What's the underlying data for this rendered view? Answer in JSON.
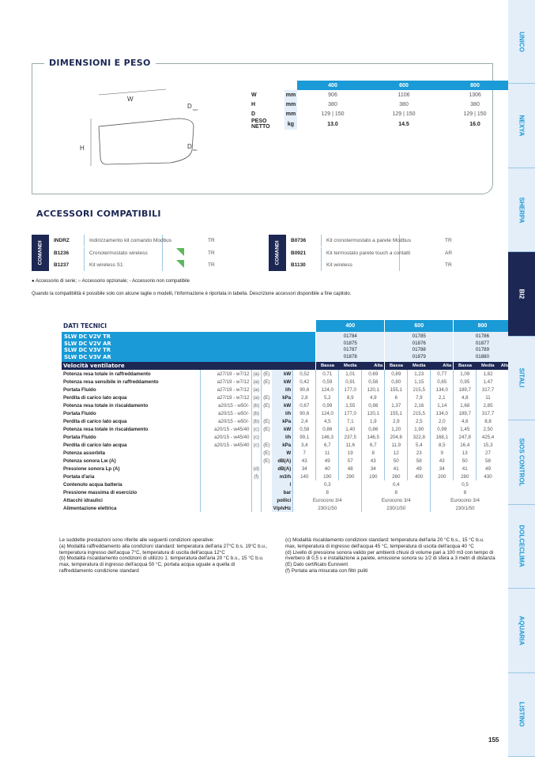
{
  "dimensions": {
    "title": "DIMENSIONI E PESO",
    "drawing_labels": {
      "w": "W",
      "h": "H",
      "dmax": "D",
      "dmax_sub": "MAX",
      "dmin": "D",
      "dmin_sub": "MIN"
    },
    "sizes": [
      "400",
      "600",
      "800"
    ],
    "rows": [
      {
        "label": "W",
        "unit": "mm",
        "values": [
          "906",
          "1106",
          "1306"
        ]
      },
      {
        "label": "H",
        "unit": "mm",
        "values": [
          "380",
          "380",
          "380"
        ]
      },
      {
        "label": "D",
        "unit": "mm",
        "values": [
          "129 | 150",
          "129 | 150",
          "129 | 150"
        ]
      },
      {
        "label": "PESO NETTO",
        "unit": "kg",
        "values": [
          "13.0",
          "14.5",
          "16.0"
        ]
      }
    ]
  },
  "accessories": {
    "title": "ACCESSORI COMPATIBILI",
    "groups": [
      {
        "category": "COMANDI",
        "items": [
          {
            "code": "INDRZ",
            "desc": "Indirizzamento kit comando Modbus",
            "compat": "TR",
            "new": false
          },
          {
            "code": "B1236",
            "desc": "Cronotermostato wireless",
            "compat": "TR",
            "new": true
          },
          {
            "code": "B1237",
            "desc": "Kit wireless S1",
            "compat": "TR",
            "new": true
          }
        ]
      },
      {
        "category": "COMANDI",
        "items": [
          {
            "code": "B0736",
            "desc": "Kit cronotermostato a parete Modbus",
            "compat": "TR",
            "new": false
          },
          {
            "code": "B0921",
            "desc": "Kit termostato parete touch a contatti",
            "compat": "AR",
            "new": false
          },
          {
            "code": "B1130",
            "desc": "Kit wireless",
            "compat": "TR",
            "new": false
          }
        ]
      }
    ],
    "legend": "● Accessorio di serie; ○ Accessorio opzionale; - Accessorio non compatibile",
    "note": "Quando la compatibilità è possibile solo con alcune taglie o modelli, l'informazione è riportata in tabella. Descrizione accessori disponibile a fine capitolo."
  },
  "tech": {
    "title": "DATI TECNICI",
    "sizes": [
      "400",
      "600",
      "800"
    ],
    "models": [
      "SLW DC V2V TR",
      "SLW DC V2V AR",
      "SLW DC V3V TR",
      "SLW DC V3V AR"
    ],
    "codes": [
      [
        "01784",
        "01875",
        "01787",
        "01878"
      ],
      [
        "01785",
        "01876",
        "01788",
        "01879"
      ],
      [
        "01786",
        "01877",
        "01789",
        "01880"
      ]
    ],
    "speed_label": "Velocità ventilatore",
    "speeds": [
      "Bassa",
      "Media",
      "Alta",
      "Bassa",
      "Media",
      "Alta",
      "Bassa",
      "Media",
      "Alta"
    ],
    "rows": [
      {
        "label": "Potenza resa totale in raffreddamento",
        "cond": "a27/19 - w7/12",
        "note": "(a)",
        "e": "(E)",
        "unit": "kW",
        "values": [
          "0,52",
          "0,71",
          "1,01",
          "0,69",
          "0,89",
          "1,23",
          "0,77",
          "1,09",
          "1,82"
        ]
      },
      {
        "label": "Potenza resa sensibile in raffreddamento",
        "cond": "a27/19 - w7/12",
        "note": "(a)",
        "e": "(E)",
        "unit": "kW",
        "values": [
          "0,42",
          "0,59",
          "0,91",
          "0,58",
          "0,80",
          "1,15",
          "0,65",
          "0,95",
          "1,47"
        ]
      },
      {
        "label": "Portata Fluido",
        "cond": "a27/19 - w7/12",
        "note": "(a)",
        "e": "",
        "unit": "l/h",
        "values": [
          "90,6",
          "124,0",
          "177,0",
          "120,1",
          "155,1",
          "215,5",
          "134,0",
          "189,7",
          "317,7"
        ]
      },
      {
        "label": "Perdita di carico lato acqua",
        "cond": "a27/19 - w7/12",
        "note": "(a)",
        "e": "(E)",
        "unit": "kPa",
        "values": [
          "2,8",
          "5,2",
          "8,9",
          "4,9",
          "6",
          "7,9",
          "2,1",
          "4,8",
          "11"
        ]
      },
      {
        "label": "Potenza resa totale in riscaldamento",
        "cond": "a20/15 - w50/-",
        "note": "(b)",
        "e": "(E)",
        "unit": "kW",
        "values": [
          "0,67",
          "0,99",
          "1,55",
          "0,98",
          "1,37",
          "2,16",
          "1,14",
          "1,68",
          "2,85"
        ]
      },
      {
        "label": "Portata Fluido",
        "cond": "a20/15 - w50/-",
        "note": "(b)",
        "e": "",
        "unit": "l/h",
        "values": [
          "90,6",
          "124,0",
          "177,0",
          "120,1",
          "155,1",
          "215,5",
          "134,0",
          "189,7",
          "317,7"
        ]
      },
      {
        "label": "Perdita di carico lato acqua",
        "cond": "a20/15 - w50/-",
        "note": "(b)",
        "e": "(E)",
        "unit": "kPa",
        "values": [
          "2,4",
          "4,5",
          "7,1",
          "1,9",
          "2,9",
          "2,5",
          "2,0",
          "4,6",
          "8,8"
        ]
      },
      {
        "label": "Potenza resa totale in riscaldamento",
        "cond": "a20/15 - w45/40",
        "note": "(c)",
        "e": "(E)",
        "unit": "kW",
        "values": [
          "0,58",
          "0,86",
          "1,40",
          "0,86",
          "1,20",
          "1,90",
          "0,99",
          "1,45",
          "2,50"
        ]
      },
      {
        "label": "Portata Fluido",
        "cond": "a20/15 - w45/40",
        "note": "(c)",
        "e": "",
        "unit": "l/h",
        "values": [
          "99,1",
          "146,3",
          "237,5",
          "146,5",
          "204,6",
          "322,8",
          "168,1",
          "247,8",
          "425,4"
        ]
      },
      {
        "label": "Perdita di carico lato acqua",
        "cond": "a20/15 - w45/40",
        "note": "(c)",
        "e": "(E)",
        "unit": "kPa",
        "values": [
          "3,4",
          "6,7",
          "11,6",
          "6,7",
          "11,9",
          "5,4",
          "8,5",
          "16,4",
          "15,3"
        ]
      },
      {
        "label": "Potenza assorbita",
        "cond": "",
        "note": "",
        "e": "(E)",
        "unit": "W",
        "values": [
          "7",
          "11",
          "19",
          "8",
          "12",
          "23",
          "9",
          "13",
          "27"
        ]
      },
      {
        "label": "Potenza sonora Lw (A)",
        "cond": "",
        "note": "",
        "e": "(E)",
        "unit": "dB(A)",
        "values": [
          "43",
          "49",
          "57",
          "43",
          "50",
          "58",
          "43",
          "50",
          "58"
        ]
      },
      {
        "label": "Pressione sonora Lp (A)",
        "cond": "",
        "note": "(d)",
        "e": "",
        "unit": "dB(A)",
        "values": [
          "34",
          "40",
          "48",
          "34",
          "41",
          "49",
          "34",
          "41",
          "49"
        ]
      },
      {
        "label": "Portata d'aria",
        "cond": "",
        "note": "(f)",
        "e": "",
        "unit": "m3/h",
        "values": [
          "140",
          "190",
          "290",
          "190",
          "260",
          "400",
          "200",
          "280",
          "430"
        ]
      },
      {
        "label": "Contenuto acqua batteria",
        "cond": "",
        "note": "",
        "e": "",
        "unit": "l",
        "values": [
          "0,3",
          "0,4",
          "0,5"
        ]
      },
      {
        "label": "Pressione massima di esercizio",
        "cond": "",
        "note": "",
        "e": "",
        "unit": "bar",
        "values": [
          "8",
          "8",
          "8"
        ]
      },
      {
        "label": "Attacchi idraulici",
        "cond": "",
        "note": "",
        "e": "",
        "unit": "pollici",
        "values": [
          "Eurocono 3/4",
          "Eurocono 3/4",
          "Eurocono 3/4"
        ]
      },
      {
        "label": "Alimentazione elettrica",
        "cond": "",
        "note": "",
        "e": "",
        "unit": "V/ph/Hz",
        "values": [
          "230/1/50",
          "230/1/50",
          "230/1/50"
        ]
      }
    ]
  },
  "notes": [
    "Le suddette prestazioni sono riferite alle seguenti condizioni operative:",
    "(a) Modalità raffreddamento alla condizioni standard: temperatura dell'aria 27°C b.s. 19°C b.u., temperatura ingresso dell'acqua 7°C, temperatura di uscita dell'acqua 12°C",
    "(b) Modalità riscaldamento condizioni di utilizzo 1: temperatura dell'aria 20 °C b.s., 15 °C b.u. max, temperatura di ingresso dell'acqua 50 °C, portata acqua uguale a quella di raffreddamento condizione standard",
    "(c) Modalità riscaldamento condizioni standard: temperatura dell'aria 20 °C b.s., 15 °C b.u. max, temperatura di ingresso dell'acqua 45 °C, temperatura di uscita dell'acqua 40 °C",
    "(d) Livello di pressione sonora valido per ambienti chiusi di volume pari a 100 m3 con tempo di riverbero di 0,5 s e installazione a parete, emissione sonora su 1/2 di sfera a 3 metri di distanza",
    "(E) Dato certificato Eurovent",
    "(f) Portata aria misurata con filtri puliti"
  ],
  "sidebar": {
    "tabs": [
      "UNICO",
      "NEXYA",
      "SHERPA",
      "BI2",
      "SITALI",
      "SIOS CONTROL",
      "DOLCECLIMA",
      "AQUARIA",
      "LISTINO"
    ],
    "active": "BI2"
  },
  "page_number": "155",
  "colors": {
    "accent_blue": "#1a9ad6",
    "navy": "#1c2754",
    "light_blue": "#e3eef9",
    "new_badge": "#5cb85c"
  }
}
